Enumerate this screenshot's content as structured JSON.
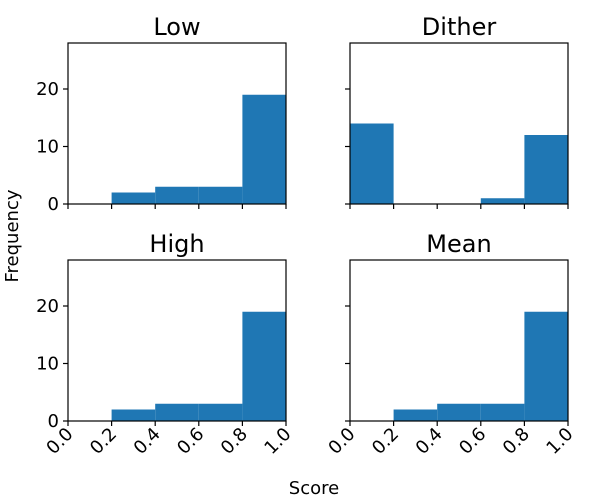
{
  "chart_data": [
    {
      "type": "bar",
      "title": "Low",
      "bin_edges": [
        0.0,
        0.2,
        0.4,
        0.6,
        0.8,
        1.0
      ],
      "values": [
        0,
        2,
        3,
        3,
        19
      ],
      "ylim": [
        0,
        28
      ],
      "xlim": [
        0,
        1.0
      ]
    },
    {
      "type": "bar",
      "title": "Dither",
      "bin_edges": [
        0.0,
        0.2,
        0.4,
        0.6,
        0.8,
        1.0
      ],
      "values": [
        14,
        0,
        0,
        1,
        12
      ],
      "ylim": [
        0,
        28
      ],
      "xlim": [
        0,
        1.0
      ]
    },
    {
      "type": "bar",
      "title": "High",
      "bin_edges": [
        0.0,
        0.2,
        0.4,
        0.6,
        0.8,
        1.0
      ],
      "values": [
        0,
        2,
        3,
        3,
        19
      ],
      "ylim": [
        0,
        28
      ],
      "xlim": [
        0,
        1.0
      ]
    },
    {
      "type": "bar",
      "title": "Mean",
      "bin_edges": [
        0.0,
        0.2,
        0.4,
        0.6,
        0.8,
        1.0
      ],
      "values": [
        0,
        2,
        3,
        3,
        19
      ],
      "ylim": [
        0,
        28
      ],
      "xlim": [
        0,
        1.0
      ]
    }
  ],
  "xlabel": "Score",
  "ylabel": "Frequency",
  "x_ticks": [
    "0.0",
    "0.2",
    "0.4",
    "0.6",
    "0.8",
    "1.0"
  ],
  "y_ticks": [
    "0",
    "10",
    "20"
  ],
  "bar_color": "#1f77b4"
}
